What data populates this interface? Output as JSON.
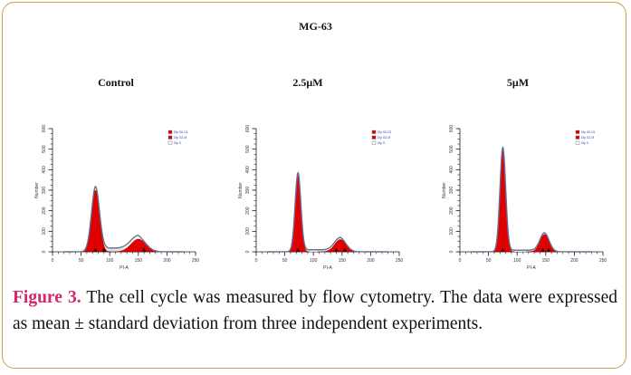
{
  "figure": {
    "main_title": "MG-63",
    "caption_label": "Figure 3.",
    "caption_text": " The cell cycle was measured by flow cytometry. The data were expressed as mean ± standard deviation from three independent experiments.",
    "colors": {
      "frame": "#c9a24a",
      "label": "#d6246e",
      "peak_fill": "#e00000",
      "sphase_line": "#4a63c9"
    }
  },
  "chart_data": [
    {
      "type": "area",
      "title": "Control",
      "xlabel": "PI-A",
      "ylabel": "Number",
      "xlim": [
        0,
        250
      ],
      "ylim": [
        0,
        600
      ],
      "x_ticks": [
        "0",
        "50",
        "100",
        "150",
        "200",
        "250"
      ],
      "y_ticks": [
        "0",
        "100",
        "200",
        "300",
        "400",
        "500",
        "600"
      ],
      "legend": [
        "Dip G0-G1",
        "Dip G2-M",
        "Dip S"
      ],
      "peaks": {
        "g1_mean": 75,
        "g1_height": 300,
        "g1_sd": 7,
        "g2_mean": 150,
        "g2_height": 62,
        "g2_sd": 13,
        "s_level": 18
      },
      "markers": [
        75,
        90,
        160
      ]
    },
    {
      "type": "area",
      "title": "2.5μM",
      "xlabel": "PI-A",
      "ylabel": "Number",
      "xlim": [
        0,
        250
      ],
      "ylim": [
        0,
        600
      ],
      "x_ticks": [
        "0",
        "50",
        "100",
        "150",
        "200",
        "250"
      ],
      "y_ticks": [
        "0",
        "100",
        "200",
        "300",
        "400",
        "500",
        "600"
      ],
      "legend": [
        "Dip G0-G1",
        "Dip G2-M",
        "Dip S"
      ],
      "peaks": {
        "g1_mean": 73,
        "g1_height": 375,
        "g1_sd": 5,
        "g2_mean": 147,
        "g2_height": 60,
        "g2_sd": 10,
        "s_level": 10
      },
      "markers": [
        73,
        140,
        155
      ]
    },
    {
      "type": "area",
      "title": "5μM",
      "xlabel": "PI-A",
      "ylabel": "Number",
      "xlim": [
        0,
        250
      ],
      "ylim": [
        0,
        600
      ],
      "x_ticks": [
        "0",
        "50",
        "100",
        "150",
        "200",
        "250"
      ],
      "y_ticks": [
        "0",
        "100",
        "200",
        "300",
        "400",
        "500",
        "600"
      ],
      "legend": [
        "Dip G0-G1",
        "Dip G2-M",
        "Dip S"
      ],
      "peaks": {
        "g1_mean": 75,
        "g1_height": 500,
        "g1_sd": 5,
        "g2_mean": 148,
        "g2_height": 85,
        "g2_sd": 8,
        "s_level": 8
      },
      "markers": [
        75,
        145,
        155
      ]
    }
  ]
}
